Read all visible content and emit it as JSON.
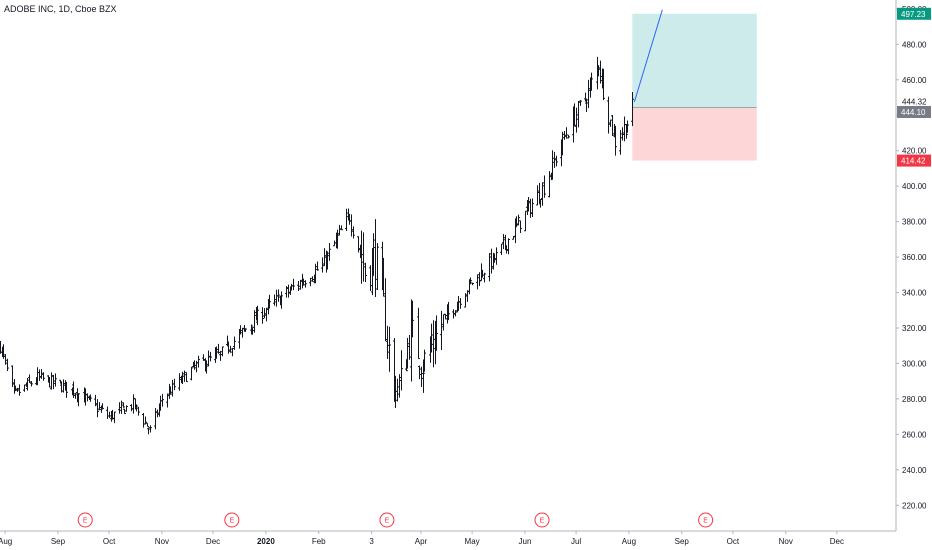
{
  "header": {
    "title": "ADOBE INC, 1D, Cboe BZX"
  },
  "colors": {
    "price_line": "#131722",
    "target_zone": "#cdebea",
    "stop_zone": "#fdd7d8",
    "target_badge": "#089981",
    "stop_badge": "#f23645",
    "last_badge": "#787b86",
    "projection_line": "#2962ff",
    "event_marker": "#f23645"
  },
  "chart_data": {
    "type": "ohlc",
    "y_axis": {
      "min": 210,
      "max": 505,
      "ticks": [
        220,
        240,
        260,
        280,
        300,
        320,
        340,
        360,
        380,
        400,
        420,
        440,
        460,
        480,
        500
      ],
      "tick_labels": [
        "220.00",
        "240.00",
        "260.00",
        "280.00",
        "300.00",
        "320.00",
        "340.00",
        "360.00",
        "380.00",
        "400.00",
        "420.00",
        "440.00",
        "460.00",
        "480.00",
        "500.00"
      ],
      "extra_label": {
        "value": 444.32,
        "text": "444.32"
      }
    },
    "x_axis": {
      "start": "2019-07-29",
      "end": "2020-12-31",
      "labels": [
        {
          "date": "2019-08-01",
          "text": "Aug"
        },
        {
          "date": "2019-09-01",
          "text": "Sep"
        },
        {
          "date": "2019-10-01",
          "text": "Oct"
        },
        {
          "date": "2019-11-01",
          "text": "Nov"
        },
        {
          "date": "2019-12-01",
          "text": "Dec"
        },
        {
          "date": "2020-01-01",
          "text": "2020"
        },
        {
          "date": "2020-02-01",
          "text": "Feb"
        },
        {
          "date": "2020-03-03",
          "text": "3"
        },
        {
          "date": "2020-04-01",
          "text": "Apr"
        },
        {
          "date": "2020-05-01",
          "text": "May"
        },
        {
          "date": "2020-06-01",
          "text": "Jun"
        },
        {
          "date": "2020-07-01",
          "text": "Jul"
        },
        {
          "date": "2020-08-01",
          "text": "Aug"
        },
        {
          "date": "2020-09-01",
          "text": "Sep"
        },
        {
          "date": "2020-10-01",
          "text": "Oct"
        },
        {
          "date": "2020-11-01",
          "text": "Nov"
        },
        {
          "date": "2020-12-01",
          "text": "Dec"
        }
      ]
    },
    "price_path": [
      {
        "date": "2019-07-29",
        "close": 310
      },
      {
        "date": "2019-08-06",
        "close": 282
      },
      {
        "date": "2019-08-20",
        "close": 292
      },
      {
        "date": "2019-09-10",
        "close": 285
      },
      {
        "date": "2019-10-01",
        "close": 270
      },
      {
        "date": "2019-10-15",
        "close": 277
      },
      {
        "date": "2019-10-25",
        "close": 262
      },
      {
        "date": "2019-11-01",
        "close": 280
      },
      {
        "date": "2019-11-20",
        "close": 298
      },
      {
        "date": "2019-12-05",
        "close": 305
      },
      {
        "date": "2019-12-31",
        "close": 330
      },
      {
        "date": "2020-01-20",
        "close": 345
      },
      {
        "date": "2020-02-03",
        "close": 355
      },
      {
        "date": "2020-02-19",
        "close": 383
      },
      {
        "date": "2020-02-28",
        "close": 352
      },
      {
        "date": "2020-03-05",
        "close": 360
      },
      {
        "date": "2020-03-10",
        "close": 330
      },
      {
        "date": "2020-03-16",
        "close": 285
      },
      {
        "date": "2020-03-20",
        "close": 290
      },
      {
        "date": "2020-03-26",
        "close": 318
      },
      {
        "date": "2020-04-02",
        "close": 300
      },
      {
        "date": "2020-04-15",
        "close": 325
      },
      {
        "date": "2020-04-30",
        "close": 345
      },
      {
        "date": "2020-05-15",
        "close": 360
      },
      {
        "date": "2020-05-29",
        "close": 380
      },
      {
        "date": "2020-06-12",
        "close": 400
      },
      {
        "date": "2020-06-25",
        "close": 430
      },
      {
        "date": "2020-07-09",
        "close": 455
      },
      {
        "date": "2020-07-14",
        "close": 470
      },
      {
        "date": "2020-07-20",
        "close": 440
      },
      {
        "date": "2020-07-24",
        "close": 425
      },
      {
        "date": "2020-07-31",
        "close": 436
      },
      {
        "date": "2020-08-03",
        "close": 444.1
      }
    ],
    "earnings_events": [
      {
        "date": "2019-09-17",
        "label": "E"
      },
      {
        "date": "2019-12-12",
        "label": "E"
      },
      {
        "date": "2020-03-12",
        "label": "E"
      },
      {
        "date": "2020-06-11",
        "label": "E"
      },
      {
        "date": "2020-09-15",
        "label": "E"
      }
    ],
    "position": {
      "start_date": "2020-08-03",
      "end_date": "2020-10-15",
      "entry": 444.32,
      "target": 497.23,
      "stop": 414.42,
      "last": 444.1,
      "target_label": "497.23",
      "stop_label": "414.42",
      "last_label": "444.10"
    },
    "grid": false,
    "legend": "none"
  }
}
